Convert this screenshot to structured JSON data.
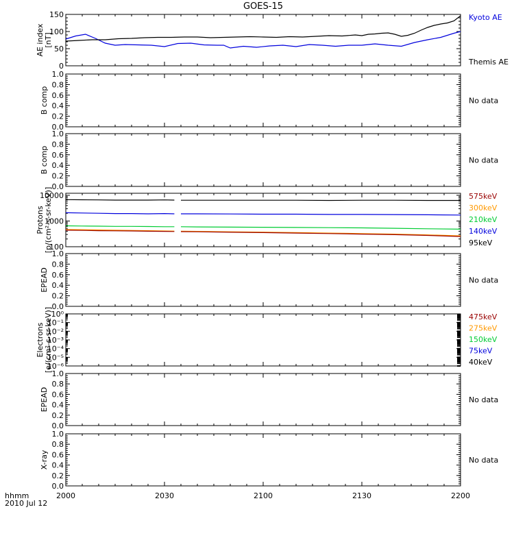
{
  "title": "GOES-15",
  "colors": {
    "black": "#000000",
    "blue": "#0000dd",
    "green": "#00cc33",
    "orange": "#ff9900",
    "darkred": "#990000"
  },
  "x_axis": {
    "corner_label": "hhmm",
    "date_label": "2010 Jul 12",
    "range_minutes": [
      0,
      120
    ],
    "ticks": [
      {
        "pos": 0,
        "label": "2000"
      },
      {
        "pos": 30,
        "label": "2030"
      },
      {
        "pos": 60,
        "label": "2100"
      },
      {
        "pos": 90,
        "label": "2130"
      },
      {
        "pos": 120,
        "label": "2200"
      }
    ]
  },
  "panels": [
    {
      "id": "ae",
      "ylabel_lines": [
        "AE index",
        "[nT]"
      ],
      "scale": "linear",
      "ylim": [
        0,
        150
      ],
      "ticks": [
        {
          "v": 0,
          "label": "0"
        },
        {
          "v": 50,
          "label": "50"
        },
        {
          "v": 100,
          "label": "100"
        },
        {
          "v": 150,
          "label": "150"
        }
      ],
      "right_labels": [
        {
          "text": "Kyoto AE",
          "color": "#0000dd"
        },
        {
          "text": "Themis AE",
          "color": "#000000"
        }
      ],
      "series": [
        {
          "name": "Kyoto AE",
          "color": "#0000dd",
          "x": [
            0,
            3,
            6,
            9,
            12,
            15,
            18,
            22,
            26,
            30,
            34,
            38,
            42,
            46,
            48,
            50,
            54,
            58,
            62,
            66,
            70,
            74,
            78,
            82,
            86,
            90,
            94,
            98,
            102,
            106,
            110,
            114,
            118,
            120
          ],
          "y": [
            78,
            87,
            92,
            80,
            66,
            60,
            62,
            61,
            60,
            56,
            65,
            66,
            61,
            60,
            60,
            52,
            57,
            54,
            58,
            60,
            56,
            62,
            60,
            57,
            60,
            60,
            64,
            60,
            57,
            68,
            76,
            83,
            95,
            100
          ]
        },
        {
          "name": "Themis AE",
          "color": "#000000",
          "x": [
            0,
            4,
            8,
            12,
            16,
            20,
            24,
            28,
            32,
            36,
            40,
            44,
            48,
            52,
            56,
            60,
            64,
            68,
            72,
            76,
            80,
            84,
            88,
            90,
            92,
            94,
            96,
            98,
            100,
            102,
            104,
            106,
            108,
            110,
            112,
            114,
            116,
            118,
            120
          ],
          "y": [
            72,
            74,
            76,
            76,
            79,
            80,
            82,
            83,
            83,
            84,
            84,
            82,
            83,
            84,
            85,
            84,
            83,
            85,
            84,
            86,
            88,
            87,
            90,
            88,
            92,
            93,
            95,
            96,
            92,
            86,
            89,
            95,
            104,
            112,
            118,
            122,
            125,
            131,
            146
          ]
        }
      ]
    },
    {
      "id": "bcomp1",
      "ylabel_lines": [
        "B comp"
      ],
      "scale": "linear",
      "ylim": [
        0,
        1
      ],
      "ticks": [
        {
          "v": 0,
          "label": "0.0"
        },
        {
          "v": 0.2,
          "label": "0.2"
        },
        {
          "v": 0.4,
          "label": "0.4"
        },
        {
          "v": 0.6,
          "label": "0.6"
        },
        {
          "v": 0.8,
          "label": "0.8"
        },
        {
          "v": 1.0,
          "label": "1.0"
        }
      ],
      "right_labels": [
        {
          "text": "No data",
          "color": "#000000"
        }
      ],
      "series": []
    },
    {
      "id": "bcomp2",
      "ylabel_lines": [
        "B comp"
      ],
      "scale": "linear",
      "ylim": [
        0,
        1
      ],
      "ticks": [
        {
          "v": 0,
          "label": "0.0"
        },
        {
          "v": 0.2,
          "label": "0.2"
        },
        {
          "v": 0.4,
          "label": "0.4"
        },
        {
          "v": 0.6,
          "label": "0.6"
        },
        {
          "v": 0.8,
          "label": "0.8"
        },
        {
          "v": 1.0,
          "label": "1.0"
        }
      ],
      "right_labels": [
        {
          "text": "No data",
          "color": "#000000"
        }
      ],
      "series": []
    },
    {
      "id": "protons",
      "ylabel_lines": [
        "Protons",
        "[p/(cm²-s-sr-keV)]"
      ],
      "scale": "log",
      "ylim": [
        100,
        12000
      ],
      "ticks": [
        {
          "v": 100,
          "label": "100"
        },
        {
          "v": 1000,
          "label": "1000"
        },
        {
          "v": 10000,
          "label": "10000"
        }
      ],
      "right_labels": [
        {
          "text": "575keV",
          "color": "#990000"
        },
        {
          "text": "300keV",
          "color": "#ff9900"
        },
        {
          "text": "210keV",
          "color": "#00cc33"
        },
        {
          "text": "140keV",
          "color": "#0000dd"
        },
        {
          "text": "95keV",
          "color": "#000000"
        }
      ],
      "series": [
        {
          "name": "95keV",
          "color": "#000000",
          "gap": [
            33,
            35
          ],
          "x": [
            0,
            5,
            10,
            15,
            20,
            25,
            30,
            33,
            35,
            40,
            50,
            60,
            70,
            80,
            90,
            100,
            110,
            120
          ],
          "y": [
            6800,
            6700,
            6600,
            6500,
            6500,
            6500,
            6600,
            6500,
            6400,
            6400,
            6400,
            6400,
            6400,
            6300,
            6400,
            6400,
            6300,
            6300
          ]
        },
        {
          "name": "140keV",
          "color": "#0000dd",
          "gap": [
            33,
            35
          ],
          "x": [
            0,
            5,
            10,
            15,
            20,
            25,
            30,
            33,
            35,
            40,
            50,
            60,
            70,
            80,
            90,
            100,
            110,
            120
          ],
          "y": [
            2100,
            2050,
            2000,
            1950,
            1950,
            1900,
            1950,
            1900,
            1900,
            1900,
            1880,
            1850,
            1850,
            1800,
            1800,
            1780,
            1750,
            1700
          ]
        },
        {
          "name": "210keV",
          "color": "#00cc33",
          "gap": [
            33,
            35
          ],
          "x": [
            0,
            5,
            10,
            15,
            20,
            25,
            30,
            33,
            35,
            40,
            50,
            60,
            70,
            80,
            90,
            100,
            110,
            120
          ],
          "y": [
            650,
            640,
            630,
            620,
            620,
            610,
            600,
            600,
            600,
            590,
            580,
            570,
            560,
            550,
            540,
            520,
            500,
            480
          ]
        },
        {
          "name": "300keV",
          "color": "#ff9900",
          "gap": [
            33,
            35
          ],
          "x": [
            0,
            5,
            10,
            15,
            20,
            25,
            30,
            33,
            35,
            40,
            50,
            60,
            70,
            80,
            90,
            100,
            110,
            120
          ],
          "y": [
            470,
            460,
            450,
            440,
            430,
            420,
            410,
            405,
            400,
            395,
            380,
            370,
            355,
            340,
            325,
            310,
            290,
            265
          ]
        },
        {
          "name": "575keV",
          "color": "#990000",
          "gap": [
            33,
            35
          ],
          "x": [
            0,
            5,
            10,
            15,
            20,
            25,
            30,
            33,
            35,
            40,
            50,
            60,
            70,
            80,
            90,
            100,
            110,
            120
          ],
          "y": [
            440,
            430,
            420,
            415,
            410,
            400,
            395,
            390,
            385,
            380,
            365,
            355,
            340,
            325,
            310,
            295,
            275,
            250
          ]
        }
      ]
    },
    {
      "id": "epead1",
      "ylabel_lines": [
        "EPEAD"
      ],
      "scale": "linear",
      "ylim": [
        0,
        1
      ],
      "ticks": [
        {
          "v": 0,
          "label": "0.0"
        },
        {
          "v": 0.2,
          "label": "0.2"
        },
        {
          "v": 0.4,
          "label": "0.4"
        },
        {
          "v": 0.6,
          "label": "0.6"
        },
        {
          "v": 0.8,
          "label": "0.8"
        },
        {
          "v": 1.0,
          "label": "1.0"
        }
      ],
      "right_labels": [
        {
          "text": "No data",
          "color": "#000000"
        }
      ],
      "series": []
    },
    {
      "id": "electrons",
      "ylabel_lines": [
        "Electrons",
        "[e/(cm²-s-sr-keV)]"
      ],
      "scale": "log",
      "ylim": [
        1e-06,
        1
      ],
      "ticks": [
        {
          "v": 1,
          "label": "10⁰"
        },
        {
          "v": 0.1,
          "label": "10⁻¹"
        },
        {
          "v": 0.01,
          "label": "10⁻²"
        },
        {
          "v": 0.001,
          "label": "10⁻³"
        },
        {
          "v": 0.0001,
          "label": "10⁻⁴"
        },
        {
          "v": 1e-05,
          "label": "10⁻⁵"
        },
        {
          "v": 1e-06,
          "label": "10⁻⁶"
        }
      ],
      "right_labels": [
        {
          "text": "475keV",
          "color": "#990000"
        },
        {
          "text": "275keV",
          "color": "#ff9900"
        },
        {
          "text": "150keV",
          "color": "#00cc33"
        },
        {
          "text": "75keV",
          "color": "#0000dd"
        },
        {
          "text": "40keV",
          "color": "#000000"
        }
      ],
      "series": []
    },
    {
      "id": "epead2",
      "ylabel_lines": [
        "EPEAD"
      ],
      "scale": "linear",
      "ylim": [
        0,
        1
      ],
      "ticks": [
        {
          "v": 0,
          "label": "0.0"
        },
        {
          "v": 0.2,
          "label": "0.2"
        },
        {
          "v": 0.4,
          "label": "0.4"
        },
        {
          "v": 0.6,
          "label": "0.6"
        },
        {
          "v": 0.8,
          "label": "0.8"
        },
        {
          "v": 1.0,
          "label": "1.0"
        }
      ],
      "right_labels": [
        {
          "text": "No data",
          "color": "#000000"
        }
      ],
      "series": []
    },
    {
      "id": "xray",
      "ylabel_lines": [
        "X-ray"
      ],
      "scale": "linear",
      "ylim": [
        0,
        1
      ],
      "ticks": [
        {
          "v": 0,
          "label": "0.0"
        },
        {
          "v": 0.2,
          "label": "0.2"
        },
        {
          "v": 0.4,
          "label": "0.4"
        },
        {
          "v": 0.6,
          "label": "0.6"
        },
        {
          "v": 0.8,
          "label": "0.8"
        },
        {
          "v": 1.0,
          "label": "1.0"
        }
      ],
      "right_labels": [
        {
          "text": "No data",
          "color": "#000000"
        }
      ],
      "series": []
    }
  ],
  "chart_data": [
    {
      "type": "line",
      "title": "GOES-15",
      "ylabel": "AE index [nT]",
      "ylim": [
        0,
        150
      ],
      "series": [
        {
          "name": "Kyoto AE",
          "x": [
            "2000",
            "2003",
            "2006",
            "2009",
            "2012",
            "2015",
            "2018",
            "2022",
            "2026",
            "2030",
            "2034",
            "2038",
            "2042",
            "2046",
            "2048",
            "2050",
            "2054",
            "2058",
            "2102",
            "2106",
            "2110",
            "2114",
            "2118",
            "2122",
            "2126",
            "2130",
            "2134",
            "2138",
            "2142",
            "2146",
            "2150",
            "2154",
            "2158",
            "2200"
          ],
          "values": [
            78,
            87,
            92,
            80,
            66,
            60,
            62,
            61,
            60,
            56,
            65,
            66,
            61,
            60,
            60,
            52,
            57,
            54,
            58,
            60,
            56,
            62,
            60,
            57,
            60,
            60,
            64,
            60,
            57,
            68,
            76,
            83,
            95,
            100
          ]
        },
        {
          "name": "Themis AE",
          "x": [
            "2000",
            "2004",
            "2008",
            "2012",
            "2016",
            "2020",
            "2024",
            "2028",
            "2032",
            "2036",
            "2040",
            "2044",
            "2048",
            "2052",
            "2056",
            "2100",
            "2104",
            "2108",
            "2112",
            "2116",
            "2120",
            "2124",
            "2128",
            "2130",
            "2132",
            "2134",
            "2136",
            "2138",
            "2140",
            "2142",
            "2144",
            "2146",
            "2148",
            "2150",
            "2152",
            "2154",
            "2156",
            "2158",
            "2200"
          ],
          "values": [
            72,
            74,
            76,
            76,
            79,
            80,
            82,
            83,
            83,
            84,
            84,
            82,
            83,
            84,
            85,
            84,
            83,
            85,
            84,
            86,
            88,
            87,
            90,
            88,
            92,
            93,
            95,
            96,
            92,
            86,
            89,
            95,
            104,
            112,
            118,
            122,
            125,
            131,
            146
          ]
        }
      ]
    },
    {
      "type": "line",
      "ylabel": "B comp",
      "ylim": [
        0,
        1
      ],
      "series": [],
      "annotations": [
        "No data"
      ]
    },
    {
      "type": "line",
      "ylabel": "B comp",
      "ylim": [
        0,
        1
      ],
      "series": [],
      "annotations": [
        "No data"
      ]
    },
    {
      "type": "line",
      "ylabel": "Protons [p/(cm²-s-sr-keV)]",
      "yscale": "log",
      "ylim": [
        100,
        12000
      ],
      "series": [
        {
          "name": "575keV",
          "x": [
            "2000",
            "2030",
            "2100",
            "2130",
            "2200"
          ],
          "values": [
            440,
            395,
            355,
            310,
            250
          ]
        },
        {
          "name": "300keV",
          "x": [
            "2000",
            "2030",
            "2100",
            "2130",
            "2200"
          ],
          "values": [
            470,
            410,
            370,
            325,
            265
          ]
        },
        {
          "name": "210keV",
          "x": [
            "2000",
            "2030",
            "2100",
            "2130",
            "2200"
          ],
          "values": [
            650,
            600,
            570,
            540,
            480
          ]
        },
        {
          "name": "140keV",
          "x": [
            "2000",
            "2030",
            "2100",
            "2130",
            "2200"
          ],
          "values": [
            2100,
            1950,
            1850,
            1800,
            1700
          ]
        },
        {
          "name": "95keV",
          "x": [
            "2000",
            "2030",
            "2100",
            "2130",
            "2200"
          ],
          "values": [
            6800,
            6600,
            6400,
            6400,
            6300
          ]
        }
      ]
    },
    {
      "type": "line",
      "ylabel": "EPEAD",
      "ylim": [
        0,
        1
      ],
      "series": [],
      "annotations": [
        "No data"
      ]
    },
    {
      "type": "line",
      "ylabel": "Electrons [e/(cm²-s-sr-keV)]",
      "yscale": "log",
      "ylim": [
        1e-06,
        1
      ],
      "series": [
        {
          "name": "475keV",
          "values": []
        },
        {
          "name": "275keV",
          "values": []
        },
        {
          "name": "150keV",
          "values": []
        },
        {
          "name": "75keV",
          "values": []
        },
        {
          "name": "40keV",
          "values": []
        }
      ]
    },
    {
      "type": "line",
      "ylabel": "EPEAD",
      "ylim": [
        0,
        1
      ],
      "series": [],
      "annotations": [
        "No data"
      ]
    },
    {
      "type": "line",
      "ylabel": "X-ray",
      "ylim": [
        0,
        1
      ],
      "series": [],
      "annotations": [
        "No data"
      ],
      "xlabel": "hhmm 2010 Jul 12",
      "xticks": [
        "2000",
        "2030",
        "2100",
        "2130",
        "2200"
      ]
    }
  ]
}
